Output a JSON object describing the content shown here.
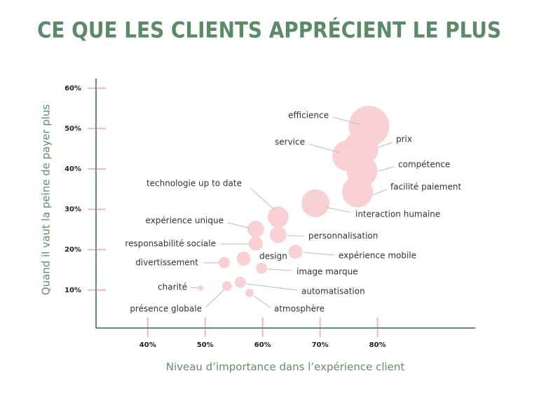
{
  "chart_data": {
    "type": "bubble",
    "title": "CE QUE LES CLIENTS APPRÉCIENT LE PLUS",
    "x_label": "Niveau d’importance dans l’expérience client",
    "y_label": "Quand il vaut la peine de payer plus",
    "color": "#f9cfd2",
    "axis_color": "#5f8f6a",
    "tick_color": "#f2b8bc",
    "title_color": "#5b8b66",
    "labels": [
      "efficience",
      "prix",
      "service",
      "compétence",
      "facilité paiement",
      "interaction humaine",
      "technologie up to date",
      "expérience unique",
      "personnalisation",
      "responsabilité sociale",
      "expérience mobile",
      "design",
      "divertissement",
      "image marque",
      "charité",
      "automatisation",
      "présence globale",
      "atmosphère"
    ],
    "x": [
      78.5,
      77.1,
      74.8,
      77.3,
      76.5,
      69.2,
      62.7,
      58.8,
      62.7,
      58.8,
      65.7,
      56.7,
      53.3,
      59.8,
      49.2,
      56.1,
      53.8,
      57.7
    ],
    "y": [
      50.6,
      45.1,
      43.3,
      39.5,
      34.3,
      31.5,
      28.1,
      25.1,
      23.7,
      21.5,
      19.5,
      17.8,
      16.8,
      15.4,
      10.5,
      11.9,
      11.0,
      9.3
    ],
    "sizes": [
      29,
      25,
      22,
      22,
      22,
      20,
      15,
      12,
      12,
      10,
      10,
      10,
      8,
      8,
      4,
      8,
      7,
      6
    ],
    "xlim": [
      31,
      97
    ],
    "ylim": [
      0.6,
      62.4
    ],
    "xticks": [
      {
        "value": 40,
        "label": "40%"
      },
      {
        "value": 50,
        "label": "50%"
      },
      {
        "value": 60,
        "label": "60%"
      },
      {
        "value": 70,
        "label": "70%"
      },
      {
        "value": 80,
        "label": "80%"
      }
    ],
    "yticks": [
      {
        "value": 10,
        "label": "10%"
      },
      {
        "value": 20,
        "label": "20%"
      },
      {
        "value": 30,
        "label": "30%"
      },
      {
        "value": 40,
        "label": "40%"
      },
      {
        "value": 50,
        "label": "50%"
      },
      {
        "value": 60,
        "label": "60%"
      }
    ]
  }
}
